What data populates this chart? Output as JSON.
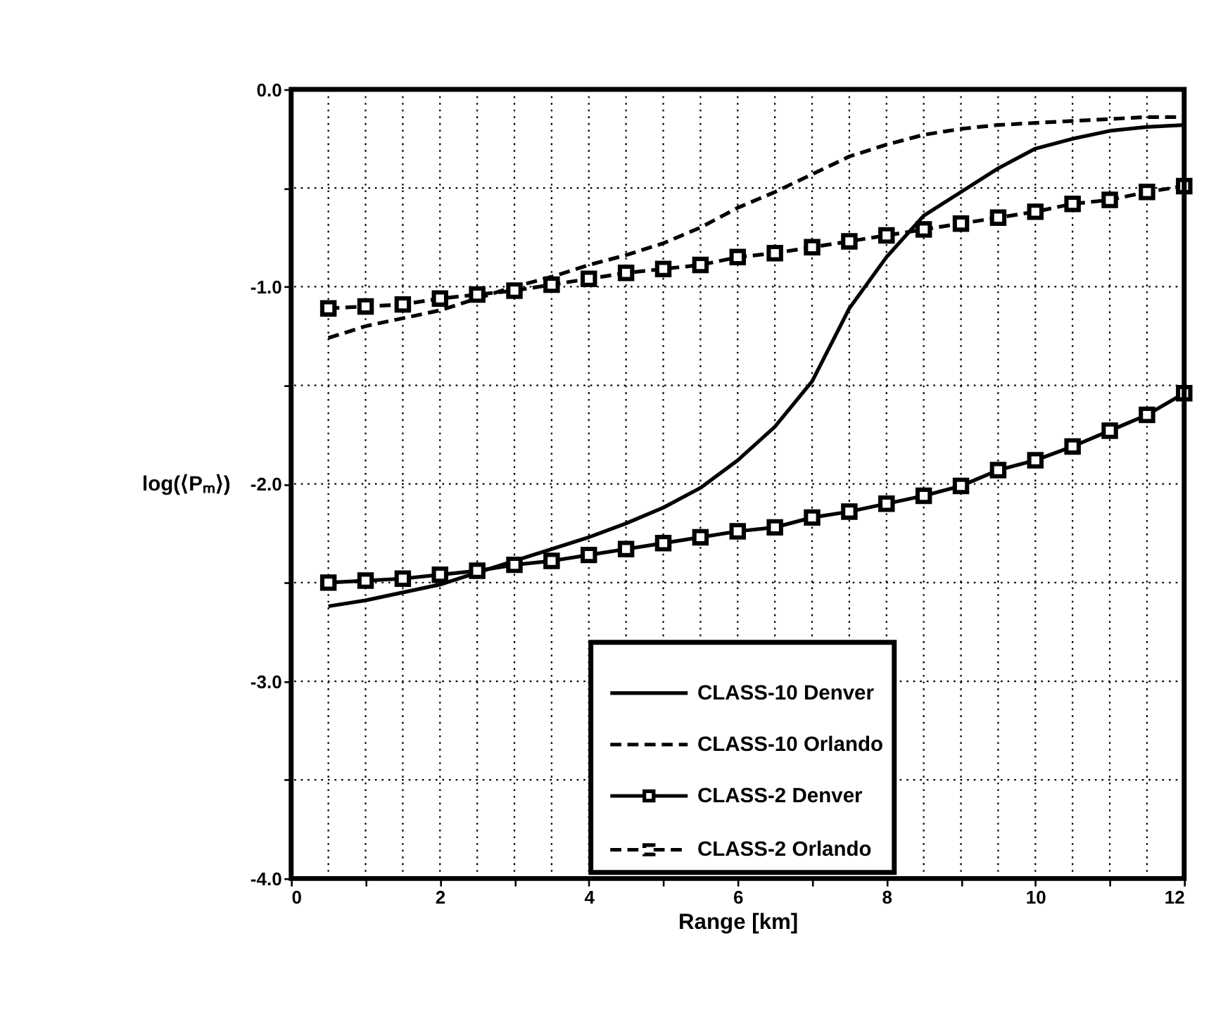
{
  "chart_data": {
    "type": "line",
    "xlabel": "Range [km]",
    "ylabel": "log(⟨Pₘ⟩)",
    "xlim": [
      0,
      12
    ],
    "ylim": [
      -4,
      0
    ],
    "xticks": [
      0,
      {
        "value": 0.5,
        "label": null
      },
      {
        "value": 1,
        "label": null
      },
      {
        "value": 1.5,
        "label": null
      },
      2,
      {
        "value": 2.5,
        "label": null
      },
      {
        "value": 3,
        "label": null
      },
      {
        "value": 3.5,
        "label": null
      },
      4,
      {
        "value": 4.5,
        "label": null
      },
      {
        "value": 5,
        "label": null
      },
      {
        "value": 5.5,
        "label": null
      },
      6,
      {
        "value": 6.5,
        "label": null
      },
      {
        "value": 7,
        "label": null
      },
      {
        "value": 7.5,
        "label": null
      },
      8,
      {
        "value": 8.5,
        "label": null
      },
      {
        "value": 9,
        "label": null
      },
      {
        "value": 9.5,
        "label": null
      },
      10,
      {
        "value": 10.5,
        "label": null
      },
      {
        "value": 11,
        "label": null
      },
      {
        "value": 11.5,
        "label": null
      },
      12
    ],
    "yticks": [
      {
        "value": -4,
        "label": "-4.0"
      },
      {
        "value": -3.5,
        "label": null
      },
      {
        "value": -3,
        "label": "-3.0"
      },
      {
        "value": -2.5,
        "label": null
      },
      {
        "value": -2,
        "label": "-2.0"
      },
      {
        "value": -1.5,
        "label": null
      },
      {
        "value": -1,
        "label": "-1.0"
      },
      {
        "value": -0.5,
        "label": null
      },
      {
        "value": 0,
        "label": "0.0"
      }
    ],
    "grid": true,
    "legend": "bottom right",
    "x": [
      0.5,
      1,
      1.5,
      2,
      2.5,
      3,
      3.5,
      4,
      4.5,
      5,
      5.5,
      6,
      6.5,
      7,
      7.5,
      8,
      8.5,
      9,
      9.5,
      10,
      10.5,
      11,
      11.5,
      12
    ],
    "series": [
      {
        "name": "CLASS-10 Denver",
        "color": "#000000",
        "line_style": "solid",
        "marker": "none",
        "values": [
          -2.62,
          -2.59,
          -2.55,
          -2.51,
          -2.45,
          -2.39,
          -2.33,
          -2.27,
          -2.2,
          -2.12,
          -2.02,
          -1.88,
          -1.71,
          -1.48,
          -1.11,
          -0.85,
          -0.64,
          -0.52,
          -0.4,
          -0.3,
          -0.25,
          -0.21,
          -0.19,
          -0.18
        ]
      },
      {
        "name": "CLASS-10 Orlando",
        "color": "#000000",
        "line_style": "dashed",
        "marker": "none",
        "values": [
          -1.26,
          -1.2,
          -1.16,
          -1.12,
          -1.06,
          -1.0,
          -0.95,
          -0.89,
          -0.84,
          -0.78,
          -0.7,
          -0.6,
          -0.52,
          -0.43,
          -0.34,
          -0.28,
          -0.23,
          -0.2,
          -0.18,
          -0.17,
          -0.16,
          -0.15,
          -0.14,
          -0.14
        ]
      },
      {
        "name": "CLASS-2 Denver",
        "color": "#000000",
        "line_style": "solid",
        "marker": "square",
        "values": [
          -2.5,
          -2.49,
          -2.48,
          -2.46,
          -2.44,
          -2.41,
          -2.39,
          -2.36,
          -2.33,
          -2.3,
          -2.27,
          -2.24,
          -2.22,
          -2.17,
          -2.14,
          -2.1,
          -2.06,
          -2.01,
          -1.93,
          -1.88,
          -1.81,
          -1.73,
          -1.65,
          -1.54
        ]
      },
      {
        "name": "CLASS-2 Orlando",
        "color": "#000000",
        "line_style": "dashed",
        "marker": "square",
        "values": [
          -1.11,
          -1.1,
          -1.09,
          -1.06,
          -1.04,
          -1.02,
          -0.99,
          -0.96,
          -0.93,
          -0.91,
          -0.89,
          -0.85,
          -0.83,
          -0.8,
          -0.77,
          -0.74,
          -0.71,
          -0.68,
          -0.65,
          -0.62,
          -0.58,
          -0.56,
          -0.52,
          -0.49
        ]
      }
    ]
  }
}
